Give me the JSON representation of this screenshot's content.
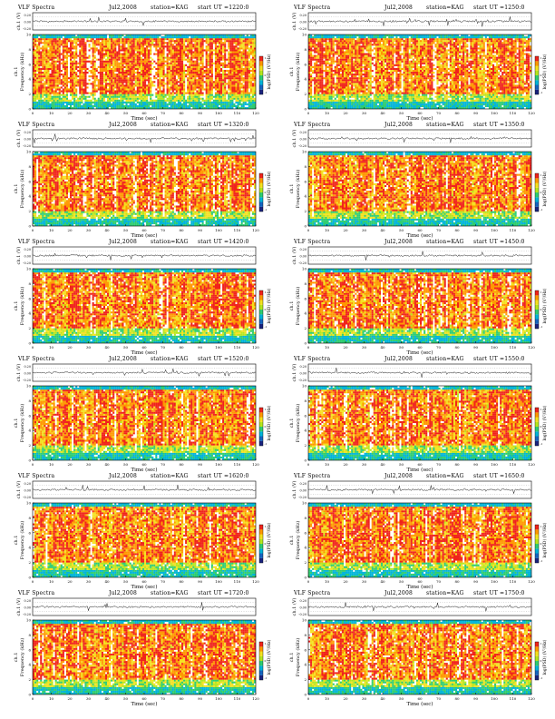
{
  "figure": {
    "panel_title_prefix": "VLF Spectra",
    "station_label": "station=KAG",
    "start_label": "start UT"
  },
  "chart_data": [
    {
      "type": "heatmap",
      "title": "VLF Spectra",
      "date": "Jul2,2008",
      "station": "KAG",
      "start_ut": "=1220:0",
      "waveform_ylabel": "ch.1 (V)",
      "waveform_yticks": [
        "0.20",
        "0.00",
        "-0.20"
      ],
      "ylabel": "Frequency (kHz)",
      "ylabel_channel": "ch.1",
      "xlabel": "Time (sec)",
      "xlim": [
        0,
        120
      ],
      "ylim": [
        0,
        10
      ],
      "xticks": [
        0,
        10,
        20,
        30,
        40,
        50,
        60,
        70,
        80,
        90,
        100,
        110,
        120
      ],
      "yticks": [
        0,
        2,
        4,
        6,
        8,
        10
      ],
      "colorbar_label": "log(PSD) (V²/Hz)",
      "colorbar_ticks": [
        "1",
        "0",
        "-1"
      ]
    },
    {
      "type": "heatmap",
      "title": "VLF Spectra",
      "date": "Jul2,2008",
      "station": "KAG",
      "start_ut": "=1250:0",
      "waveform_ylabel": "ch.1 (V)",
      "waveform_yticks": [
        "0.20",
        "0.00",
        "-0.20"
      ],
      "ylabel": "Frequency (kHz)",
      "ylabel_channel": "ch.1",
      "xlabel": "Time (sec)",
      "xlim": [
        0,
        120
      ],
      "ylim": [
        0,
        10
      ],
      "xticks": [
        0,
        10,
        20,
        30,
        40,
        50,
        60,
        70,
        80,
        90,
        100,
        110,
        120
      ],
      "yticks": [
        0,
        2,
        4,
        6,
        8,
        10
      ],
      "colorbar_label": "log(PSD) (V²/Hz)",
      "colorbar_ticks": [
        "1",
        "0",
        "-1"
      ]
    },
    {
      "type": "heatmap",
      "title": "VLF Spectra",
      "date": "Jul2,2008",
      "station": "KAG",
      "start_ut": "=1320:0",
      "waveform_ylabel": "ch.1 (V)",
      "waveform_yticks": [
        "0.20",
        "0.00",
        "-0.20"
      ],
      "ylabel": "Frequency (kHz)",
      "ylabel_channel": "ch.1",
      "xlabel": "Time (sec)",
      "xlim": [
        0,
        120
      ],
      "ylim": [
        0,
        10
      ],
      "xticks": [
        0,
        10,
        20,
        30,
        40,
        50,
        60,
        70,
        80,
        90,
        100,
        110,
        120
      ],
      "yticks": [
        0,
        2,
        4,
        6,
        8,
        10
      ],
      "colorbar_label": "log(PSD) (V²/Hz)",
      "colorbar_ticks": [
        "1",
        "0",
        "-1"
      ]
    },
    {
      "type": "heatmap",
      "title": "VLF Spectra",
      "date": "Jul2,2008",
      "station": "KAG",
      "start_ut": "=1350:0",
      "waveform_ylabel": "ch.1 (V)",
      "waveform_yticks": [
        "0.20",
        "0.00",
        "-0.20"
      ],
      "ylabel": "Frequency (kHz)",
      "ylabel_channel": "ch.1",
      "xlabel": "Time (sec)",
      "xlim": [
        0,
        120
      ],
      "ylim": [
        0,
        10
      ],
      "xticks": [
        0,
        10,
        20,
        30,
        40,
        50,
        60,
        70,
        80,
        90,
        100,
        110,
        120
      ],
      "yticks": [
        0,
        2,
        4,
        6,
        8,
        10
      ],
      "colorbar_label": "log(PSD) (V²/Hz)",
      "colorbar_ticks": [
        "1",
        "0",
        "-1"
      ]
    },
    {
      "type": "heatmap",
      "title": "VLF Spectra",
      "date": "Jul2,2008",
      "station": "KAG",
      "start_ut": "=1420:0",
      "waveform_ylabel": "ch.1 (V)",
      "waveform_yticks": [
        "0.20",
        "0.00",
        "-0.20"
      ],
      "ylabel": "Frequency (kHz)",
      "ylabel_channel": "ch.1",
      "xlabel": "Time (sec)",
      "xlim": [
        0,
        120
      ],
      "ylim": [
        0,
        10
      ],
      "xticks": [
        0,
        10,
        20,
        30,
        40,
        50,
        60,
        70,
        80,
        90,
        100,
        110,
        120
      ],
      "yticks": [
        0,
        2,
        4,
        6,
        8,
        10
      ],
      "colorbar_label": "log(PSD) (V²/Hz)",
      "colorbar_ticks": [
        "1",
        "0",
        "-1"
      ]
    },
    {
      "type": "heatmap",
      "title": "VLF Spectra",
      "date": "Jul2,2008",
      "station": "KAG",
      "start_ut": "=1450:0",
      "waveform_ylabel": "ch.1 (V)",
      "waveform_yticks": [
        "0.20",
        "0.00",
        "-0.20"
      ],
      "ylabel": "Frequency (kHz)",
      "ylabel_channel": "ch.1",
      "xlabel": "Time (sec)",
      "xlim": [
        0,
        120
      ],
      "ylim": [
        0,
        10
      ],
      "xticks": [
        0,
        10,
        20,
        30,
        40,
        50,
        60,
        70,
        80,
        90,
        100,
        110,
        120
      ],
      "yticks": [
        0,
        2,
        4,
        6,
        8,
        10
      ],
      "colorbar_label": "log(PSD) (V²/Hz)",
      "colorbar_ticks": [
        "1",
        "0",
        "-1"
      ]
    },
    {
      "type": "heatmap",
      "title": "VLF Spectra",
      "date": "Jul2,2008",
      "station": "KAG",
      "start_ut": "=1520:0",
      "waveform_ylabel": "ch.1 (V)",
      "waveform_yticks": [
        "0.20",
        "0.00",
        "-0.20"
      ],
      "ylabel": "Frequency (kHz)",
      "ylabel_channel": "ch.1",
      "xlabel": "Time (sec)",
      "xlim": [
        0,
        120
      ],
      "ylim": [
        0,
        10
      ],
      "xticks": [
        0,
        10,
        20,
        30,
        40,
        50,
        60,
        70,
        80,
        90,
        100,
        110,
        120
      ],
      "yticks": [
        0,
        2,
        4,
        6,
        8,
        10
      ],
      "colorbar_label": "log(PSD) (V²/Hz)",
      "colorbar_ticks": [
        "1",
        "0",
        "-1"
      ]
    },
    {
      "type": "heatmap",
      "title": "VLF Spectra",
      "date": "Jul2,2008",
      "station": "KAG",
      "start_ut": "=1550:0",
      "waveform_ylabel": "ch.1 (V)",
      "waveform_yticks": [
        "0.20",
        "0.00",
        "-0.20"
      ],
      "ylabel": "Frequency (kHz)",
      "ylabel_channel": "ch.1",
      "xlabel": "Time (sec)",
      "xlim": [
        0,
        120
      ],
      "ylim": [
        0,
        10
      ],
      "xticks": [
        0,
        10,
        20,
        30,
        40,
        50,
        60,
        70,
        80,
        90,
        100,
        110,
        120
      ],
      "yticks": [
        0,
        2,
        4,
        6,
        8,
        10
      ],
      "colorbar_label": "log(PSD) (V²/Hz)",
      "colorbar_ticks": [
        "1",
        "0",
        "-1"
      ]
    },
    {
      "type": "heatmap",
      "title": "VLF Spectra",
      "date": "Jul2,2008",
      "station": "KAG",
      "start_ut": "=1620:0",
      "waveform_ylabel": "ch.1 (V)",
      "waveform_yticks": [
        "0.20",
        "0.00",
        "-0.20"
      ],
      "ylabel": "Frequency (kHz)",
      "ylabel_channel": "ch.1",
      "xlabel": "Time (sec)",
      "xlim": [
        0,
        120
      ],
      "ylim": [
        0,
        10
      ],
      "xticks": [
        0,
        10,
        20,
        30,
        40,
        50,
        60,
        70,
        80,
        90,
        100,
        110,
        120
      ],
      "yticks": [
        0,
        2,
        4,
        6,
        8,
        10
      ],
      "colorbar_label": "log(PSD) (V²/Hz)",
      "colorbar_ticks": [
        "1",
        "0",
        "-1"
      ]
    },
    {
      "type": "heatmap",
      "title": "VLF Spectra",
      "date": "Jul2,2008",
      "station": "KAG",
      "start_ut": "=1650:0",
      "waveform_ylabel": "ch.1 (V)",
      "waveform_yticks": [
        "0.20",
        "0.00",
        "-0.20"
      ],
      "ylabel": "Frequency (kHz)",
      "ylabel_channel": "ch.1",
      "xlabel": "Time (sec)",
      "xlim": [
        0,
        120
      ],
      "ylim": [
        0,
        10
      ],
      "xticks": [
        0,
        10,
        20,
        30,
        40,
        50,
        60,
        70,
        80,
        90,
        100,
        110,
        120
      ],
      "yticks": [
        0,
        2,
        4,
        6,
        8,
        10
      ],
      "colorbar_label": "log(PSD) (V²/Hz)",
      "colorbar_ticks": [
        "1",
        "0",
        "-1"
      ]
    },
    {
      "type": "heatmap",
      "title": "VLF Spectra",
      "date": "Jul2,2008",
      "station": "KAG",
      "start_ut": "=1720:0",
      "waveform_ylabel": "ch.1 (V)",
      "waveform_yticks": [
        "0.20",
        "0.00",
        "-0.20"
      ],
      "ylabel": "Frequency (kHz)",
      "ylabel_channel": "ch.1",
      "xlabel": "Time (sec)",
      "xlim": [
        0,
        120
      ],
      "ylim": [
        0,
        10
      ],
      "xticks": [
        0,
        10,
        20,
        30,
        40,
        50,
        60,
        70,
        80,
        90,
        100,
        110,
        120
      ],
      "yticks": [
        0,
        2,
        4,
        6,
        8,
        10
      ],
      "colorbar_label": "log(PSD) (V²/Hz)",
      "colorbar_ticks": [
        "1",
        "0",
        "-1"
      ]
    },
    {
      "type": "heatmap",
      "title": "VLF Spectra",
      "date": "Jul2,2008",
      "station": "KAG",
      "start_ut": "=1750:0",
      "waveform_ylabel": "ch.1 (V)",
      "waveform_yticks": [
        "0.20",
        "0.00",
        "-0.20"
      ],
      "ylabel": "Frequency (kHz)",
      "ylabel_channel": "ch.1",
      "xlabel": "Time (sec)",
      "xlim": [
        0,
        120
      ],
      "ylim": [
        0,
        10
      ],
      "xticks": [
        0,
        10,
        20,
        30,
        40,
        50,
        60,
        70,
        80,
        90,
        100,
        110,
        120
      ],
      "yticks": [
        0,
        2,
        4,
        6,
        8,
        10
      ],
      "colorbar_label": "log(PSD) (V²/Hz)",
      "colorbar_ticks": [
        "1",
        "0",
        "-1"
      ]
    }
  ],
  "colors": {
    "spectrogram_scale": [
      "#1a237e",
      "#1565c0",
      "#00b4d8",
      "#2ecc71",
      "#b5e61d",
      "#f4e11e",
      "#ff9800",
      "#f0231b"
    ],
    "waveform_line": "#222222",
    "axis": "#000000"
  }
}
